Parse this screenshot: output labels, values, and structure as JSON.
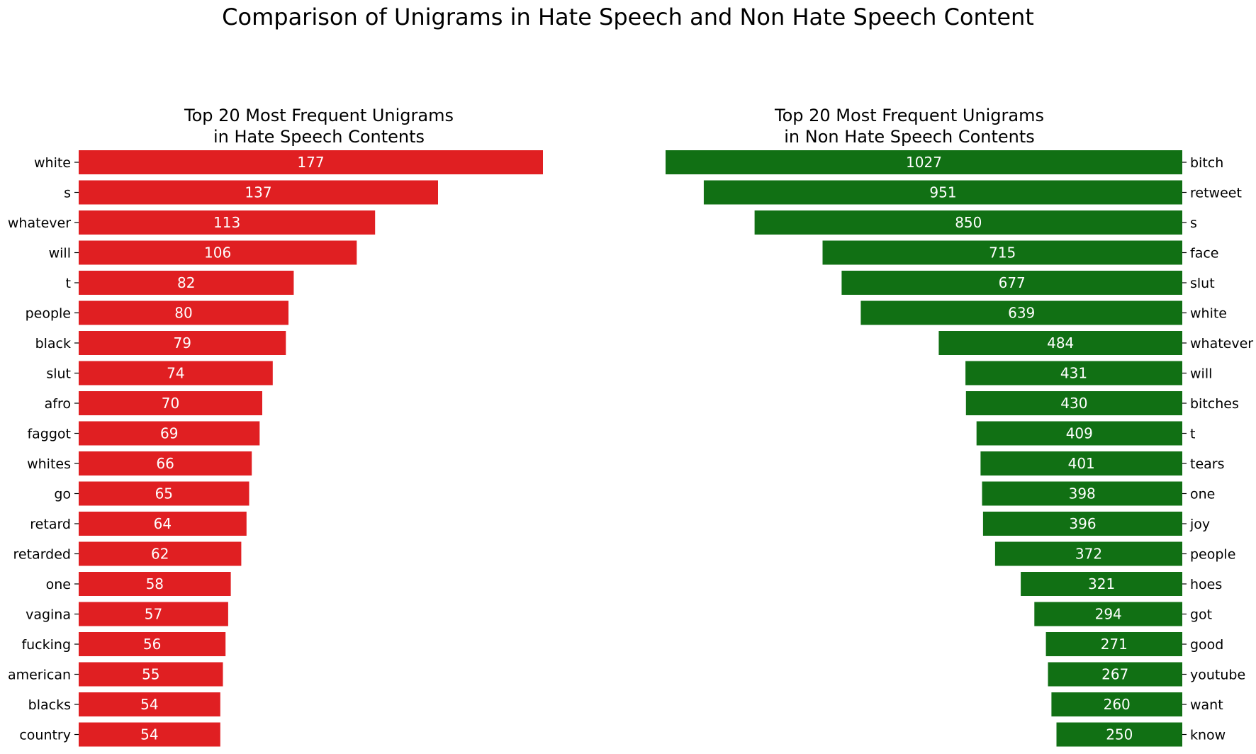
{
  "figure_title": "Comparison of Unigrams in Hate Speech and Non Hate Speech Content",
  "chart_data": [
    {
      "type": "bar",
      "orientation": "horizontal",
      "title_lines": [
        "Top 20 Most Frequent Unigrams",
        "in Hate Speech Contents"
      ],
      "color": "#e01f22",
      "label_side": "left",
      "bar_direction": "left-to-right",
      "xlim": [
        0,
        177
      ],
      "categories": [
        "white",
        "s",
        "whatever",
        "will",
        "t",
        "people",
        "black",
        "slut",
        "afro",
        "faggot",
        "whites",
        "go",
        "retard",
        "retarded",
        "one",
        "vagina",
        "fucking",
        "american",
        "blacks",
        "country"
      ],
      "values": [
        177,
        137,
        113,
        106,
        82,
        80,
        79,
        74,
        70,
        69,
        66,
        65,
        64,
        62,
        58,
        57,
        56,
        55,
        54,
        54
      ],
      "grid": false
    },
    {
      "type": "bar",
      "orientation": "horizontal",
      "title_lines": [
        "Top 20 Most Frequent Unigrams",
        "in Non Hate Speech Contents"
      ],
      "color": "#117014",
      "label_side": "right",
      "bar_direction": "right-to-left",
      "xlim": [
        0,
        1027
      ],
      "categories": [
        "bitch",
        "retweet",
        "s",
        "face",
        "slut",
        "white",
        "whatever",
        "will",
        "bitches",
        "t",
        "tears",
        "one",
        "joy",
        "people",
        "hoes",
        "got",
        "good",
        "youtube",
        "want",
        "know"
      ],
      "values": [
        1027,
        951,
        850,
        715,
        677,
        639,
        484,
        431,
        430,
        409,
        401,
        398,
        396,
        372,
        321,
        294,
        271,
        267,
        260,
        250
      ],
      "grid": false
    }
  ]
}
